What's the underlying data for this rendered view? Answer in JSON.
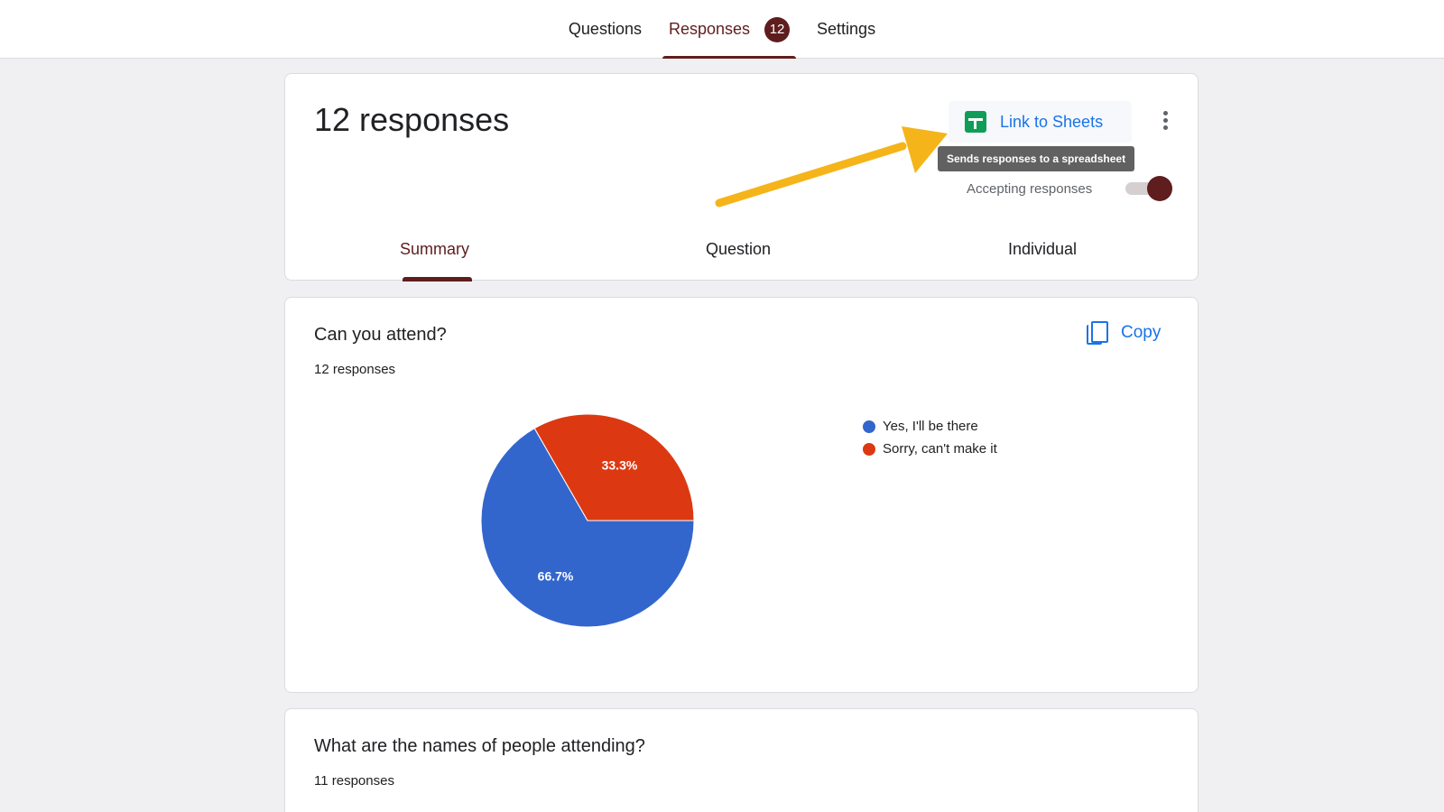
{
  "tabs": [
    {
      "label": "Questions"
    },
    {
      "label": "Responses",
      "badge": "12"
    },
    {
      "label": "Settings"
    }
  ],
  "header": {
    "title": "12 responses",
    "link_sheets_label": "Link to Sheets",
    "tooltip": "Sends responses to a spreadsheet",
    "accepting_label": "Accepting responses",
    "accepting": true
  },
  "subtabs": [
    {
      "label": "Summary",
      "active": true
    },
    {
      "label": "Question"
    },
    {
      "label": "Individual"
    }
  ],
  "question1": {
    "title": "Can you attend?",
    "count": "12 responses",
    "copy_label": "Copy"
  },
  "chart_data": {
    "type": "pie",
    "labels": [
      "Yes, I'll be there",
      "Sorry, can't make it"
    ],
    "values": [
      66.7,
      33.3
    ],
    "display_labels": [
      "66.7%",
      "33.3%"
    ],
    "colors": [
      "#3366cc",
      "#dc3912"
    ],
    "legend": "right"
  },
  "question2": {
    "title": "What are the names of people attending?",
    "count": "11 responses"
  },
  "colors": {
    "accent": "#5f1d1d",
    "link": "#1a73e8",
    "sheets": "#0f9d58",
    "annotation_arrow": "#f5b41a"
  }
}
